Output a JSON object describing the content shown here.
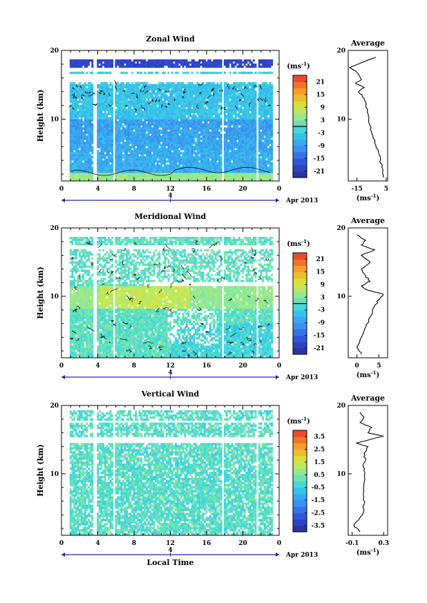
{
  "figure": {
    "xlabel": "Local Time",
    "date_label": "Apr 2013",
    "date_marker": "4",
    "ylabel": "Height (km)",
    "avg_title": "Average",
    "avg_unit_base": "(ms",
    "avg_unit_exp": "-1",
    "avg_unit_close": ")",
    "cb_unit_base": "(ms",
    "cb_unit_exp": "-1",
    "cb_unit_close": ")"
  },
  "chart_data": [
    {
      "type": "heatmap",
      "title": "Zonal Wind",
      "xlabel": "",
      "ylabel": "Height (km)",
      "xlim": [
        0,
        24
      ],
      "ylim": [
        1,
        20
      ],
      "xticks": [
        "0",
        "4",
        "8",
        "12",
        "16",
        "20",
        "0"
      ],
      "yticks": [
        10,
        20
      ],
      "colorbar": {
        "unit": "(ms-1)",
        "ticks": [
          "-21",
          "-15",
          "-9",
          "-3",
          "3",
          "9",
          "15",
          "21"
        ],
        "range": [
          -24,
          24
        ],
        "contour_at": 0
      },
      "colors": {
        "low": "#2a2a9e",
        "mid": "#35c8ec",
        "high": "#e8362a"
      },
      "data_gaps_hours": [
        [
          3.5,
          3.8
        ],
        [
          5.6,
          5.9
        ],
        [
          17.5,
          17.8
        ],
        [
          21.3,
          21.6
        ]
      ],
      "profile": {
        "xlim": [
          -21,
          6
        ],
        "xticks": [
          "-15",
          "5"
        ],
        "x": [
          -2,
          -20,
          -16,
          -12,
          -16,
          -10,
          -14,
          -10,
          -9,
          -8,
          -7,
          -6,
          -5,
          -3,
          -2,
          0,
          1,
          2,
          3
        ],
        "y": [
          19,
          17.5,
          17,
          15.8,
          15.2,
          14.6,
          14,
          13,
          12,
          11,
          10,
          9,
          8,
          7,
          6,
          5,
          4,
          3,
          1.5
        ]
      }
    },
    {
      "type": "heatmap",
      "title": "Meridional Wind",
      "xlabel": "",
      "ylabel": "Height (km)",
      "xlim": [
        0,
        24
      ],
      "ylim": [
        1,
        20
      ],
      "xticks": [
        "0",
        "4",
        "8",
        "12",
        "16",
        "20",
        "0"
      ],
      "yticks": [
        10,
        20
      ],
      "colorbar": {
        "unit": "(ms-1)",
        "ticks": [
          "-21",
          "-15",
          "-9",
          "-3",
          "3",
          "9",
          "15",
          "21"
        ],
        "range": [
          -24,
          24
        ],
        "contour_at": 0
      },
      "colors": {
        "low": "#2a2a9e",
        "mid": "#35c8ec",
        "high": "#e8362a"
      },
      "data_gaps_hours": [
        [
          3.5,
          3.8
        ],
        [
          5.6,
          5.9
        ],
        [
          17.5,
          17.8
        ],
        [
          21.3,
          21.6
        ]
      ],
      "profile": {
        "xlim": [
          -2,
          7
        ],
        "xticks": [
          "0",
          "5"
        ],
        "x": [
          0,
          2,
          1,
          4,
          1,
          3,
          1,
          2,
          3,
          1,
          2,
          6,
          5,
          4,
          3,
          2,
          1,
          0,
          1
        ],
        "y": [
          19,
          18.2,
          17.5,
          16.8,
          16,
          15,
          14,
          13,
          12.2,
          11.5,
          11,
          10.3,
          9.5,
          8.5,
          7,
          5.5,
          4,
          2.5,
          1.5
        ]
      }
    },
    {
      "type": "heatmap",
      "title": "Vertical Wind",
      "xlabel": "Local Time",
      "ylabel": "Height (km)",
      "xlim": [
        0,
        24
      ],
      "ylim": [
        1,
        20
      ],
      "xticks": [
        "0",
        "4",
        "8",
        "12",
        "16",
        "20",
        "0"
      ],
      "yticks": [
        10,
        20
      ],
      "colorbar": {
        "unit": "(ms-1)",
        "ticks": [
          "-3.5",
          "-2.5",
          "-1.5",
          "-0.5",
          "0.5",
          "1.5",
          "2.5",
          "3.5"
        ],
        "range": [
          -4,
          4
        ],
        "contour_at": null
      },
      "colors": {
        "low": "#2a2a9e",
        "mid": "#35c8ec",
        "high": "#e8362a"
      },
      "data_gaps_hours": [
        [
          3.5,
          3.8
        ],
        [
          5.6,
          5.9
        ],
        [
          17.5,
          17.8
        ],
        [
          21.3,
          21.6
        ]
      ],
      "profile": {
        "xlim": [
          -0.15,
          0.35
        ],
        "xticks": [
          "-0.1",
          "0.3"
        ],
        "x": [
          0.0,
          0.05,
          0.0,
          0.15,
          0.1,
          0.3,
          -0.05,
          0.1,
          0.05,
          0.07,
          0.04,
          0.06,
          0.05,
          0.04,
          0.05,
          0.03,
          -0.08,
          0.0
        ],
        "y": [
          19,
          18.3,
          17.5,
          16.8,
          16,
          15.5,
          14.5,
          14,
          13,
          12,
          11,
          10,
          8.5,
          7,
          5.5,
          4,
          2.5,
          1.5
        ]
      }
    }
  ]
}
